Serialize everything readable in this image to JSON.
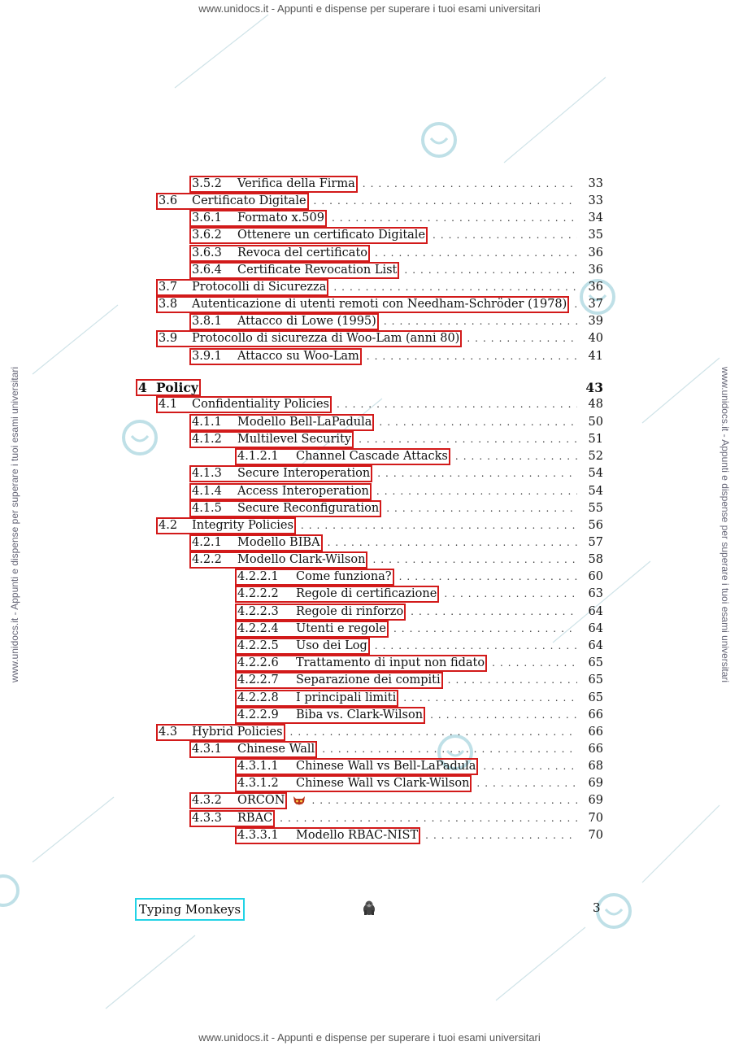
{
  "watermark": {
    "header": "www.unidocs.it - Appunti e dispense per superare i tuoi esami universitari",
    "footer": "www.unidocs.it - Appunti e dispense per superare i tuoi esami universitari",
    "side_left": "www.unidocs.it - Appunti e dispense per superare i tuoi esami universitari",
    "side_right": "www.unidocs.it - Appunti e dispense per superare i tuoi esami universitari"
  },
  "toc": [
    {
      "num": "3.5.2",
      "title": "Verifica della Firma",
      "page": "33"
    },
    {
      "num": "3.6",
      "title": "Certificato Digitale",
      "page": "33"
    },
    {
      "num": "3.6.1",
      "title": "Formato x.509",
      "page": "34"
    },
    {
      "num": "3.6.2",
      "title": "Ottenere un certificato Digitale",
      "page": "35"
    },
    {
      "num": "3.6.3",
      "title": "Revoca del certificato",
      "page": "36"
    },
    {
      "num": "3.6.4",
      "title": "Certificate Revocation List",
      "page": "36"
    },
    {
      "num": "3.7",
      "title": "Protocolli di Sicurezza",
      "page": "36"
    },
    {
      "num": "3.8",
      "title": "Autenticazione di utenti remoti con Needham-Schröder (1978)",
      "page": "37"
    },
    {
      "num": "3.8.1",
      "title": "Attacco di Lowe (1995)",
      "page": "39"
    },
    {
      "num": "3.9",
      "title": "Protocollo di sicurezza di Woo-Lam (anni 80)",
      "page": "40"
    },
    {
      "num": "3.9.1",
      "title": "Attacco su Woo-Lam",
      "page": "41"
    },
    {
      "num": "4",
      "title": "Policy",
      "page": "43"
    },
    {
      "num": "4.1",
      "title": "Confidentiality Policies",
      "page": "48"
    },
    {
      "num": "4.1.1",
      "title": "Modello Bell-LaPadula",
      "page": "50"
    },
    {
      "num": "4.1.2",
      "title": "Multilevel Security",
      "page": "51"
    },
    {
      "num": "4.1.2.1",
      "title": "Channel Cascade Attacks",
      "page": "52"
    },
    {
      "num": "4.1.3",
      "title": "Secure Interoperation",
      "page": "54"
    },
    {
      "num": "4.1.4",
      "title": "Access Interoperation",
      "page": "54"
    },
    {
      "num": "4.1.5",
      "title": "Secure Reconfiguration",
      "page": "55"
    },
    {
      "num": "4.2",
      "title": "Integrity Policies",
      "page": "56"
    },
    {
      "num": "4.2.1",
      "title": "Modello BIBA",
      "page": "57"
    },
    {
      "num": "4.2.2",
      "title": "Modello Clark-Wilson",
      "page": "58"
    },
    {
      "num": "4.2.2.1",
      "title": "Come funziona?",
      "page": "60"
    },
    {
      "num": "4.2.2.2",
      "title": "Regole di certificazione",
      "page": "63"
    },
    {
      "num": "4.2.2.3",
      "title": "Regole di rinforzo",
      "page": "64"
    },
    {
      "num": "4.2.2.4",
      "title": "Utenti e regole",
      "page": "64"
    },
    {
      "num": "4.2.2.5",
      "title": "Uso dei Log",
      "page": "64"
    },
    {
      "num": "4.2.2.6",
      "title": "Trattamento di input non fidato",
      "page": "65"
    },
    {
      "num": "4.2.2.7",
      "title": "Separazione dei compiti",
      "page": "65"
    },
    {
      "num": "4.2.2.8",
      "title": "I principali limiti",
      "page": "65"
    },
    {
      "num": "4.2.2.9",
      "title": "Biba vs. Clark-Wilson",
      "page": "66"
    },
    {
      "num": "4.3",
      "title": "Hybrid Policies",
      "page": "66"
    },
    {
      "num": "4.3.1",
      "title": "Chinese Wall",
      "page": "66"
    },
    {
      "num": "4.3.1.1",
      "title": "Chinese Wall vs Bell-LaPadula",
      "page": "68"
    },
    {
      "num": "4.3.1.2",
      "title": "Chinese Wall vs Clark-Wilson",
      "page": "69"
    },
    {
      "num": "4.3.2",
      "title": "ORCON",
      "page": "69",
      "icon": "demon-mask-icon"
    },
    {
      "num": "4.3.3",
      "title": "RBAC",
      "page": "70"
    },
    {
      "num": "4.3.3.1",
      "title": "Modello RBAC-NIST",
      "page": "70"
    }
  ],
  "footer": {
    "left": "Typing Monkeys",
    "icon": "gorilla-icon",
    "page": "3"
  },
  "colors": {
    "highlight_box": "#d21a1a",
    "footer_box": "#22d3e6",
    "watermark": "#c9dfe4"
  }
}
